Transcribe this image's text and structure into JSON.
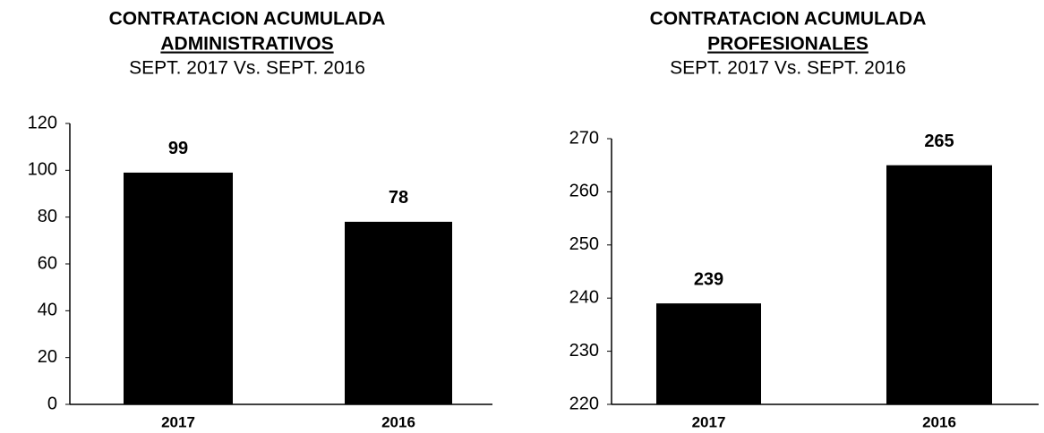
{
  "chart_data": [
    {
      "type": "bar",
      "title": "CONTRATACION ACUMULADA",
      "subtitle": "ADMINISTRATIVOS",
      "period": "SEPT. 2017 Vs. SEPT. 2016",
      "categories": [
        "2017",
        "2016"
      ],
      "values": [
        99,
        78
      ],
      "color": "#000000",
      "ylim": [
        0,
        120
      ],
      "yticks": [
        0,
        20,
        40,
        60,
        80,
        100,
        120
      ],
      "grid": false
    },
    {
      "type": "bar",
      "title": "CONTRATACION ACUMULADA",
      "subtitle": "PROFESIONALES",
      "period": "SEPT. 2017 Vs. SEPT. 2016",
      "categories": [
        "2017",
        "2016"
      ],
      "values": [
        239,
        265
      ],
      "color": "#000000",
      "ylim": [
        220,
        270
      ],
      "yticks": [
        220,
        230,
        240,
        250,
        260,
        270
      ],
      "grid": false
    }
  ]
}
